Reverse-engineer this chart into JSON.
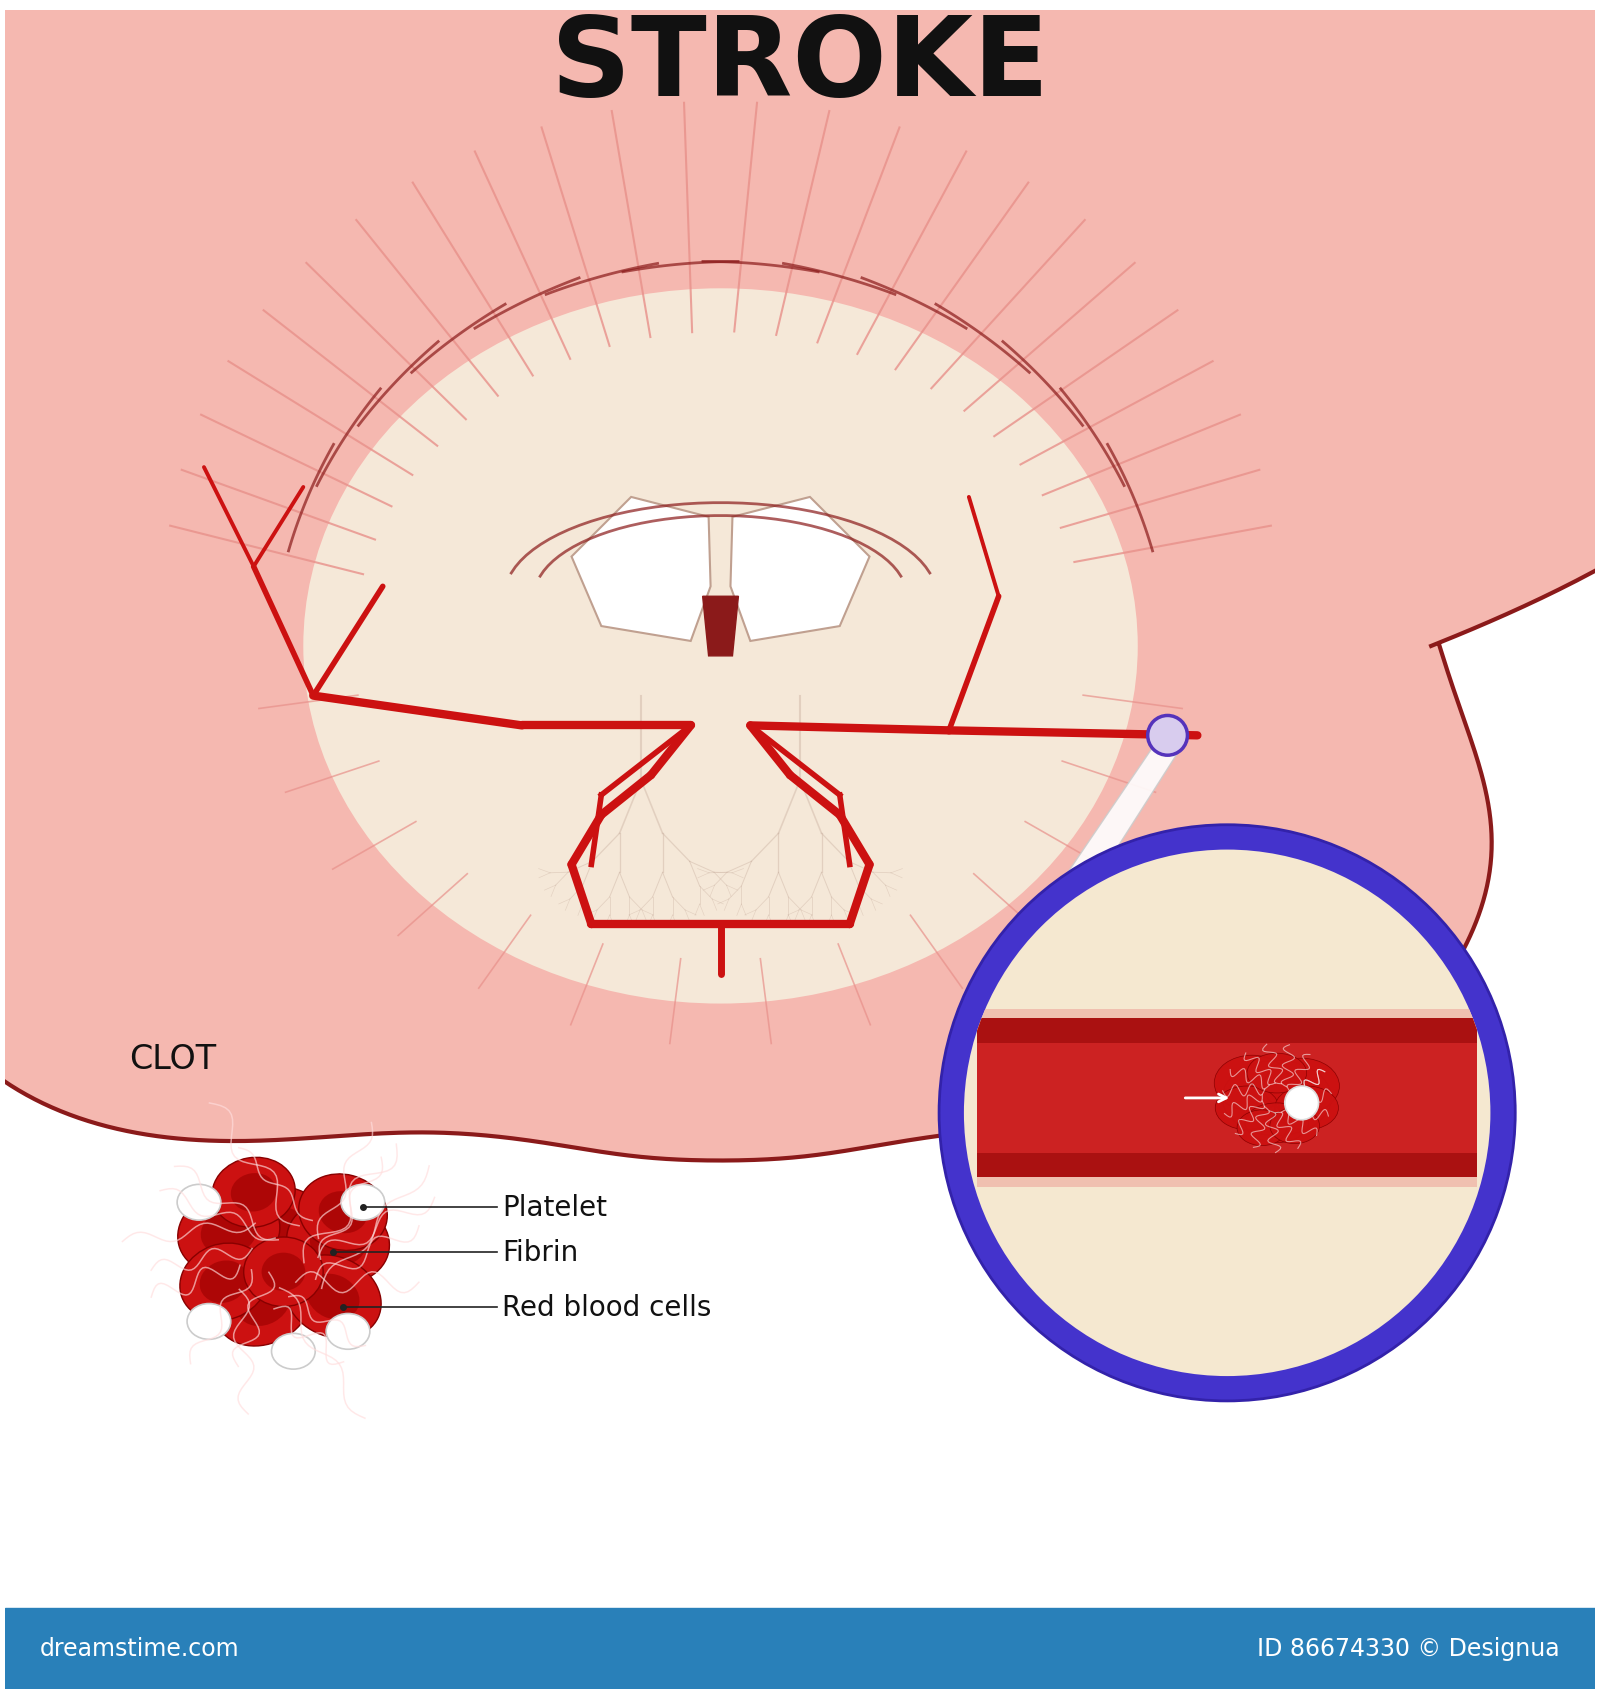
{
  "title": "STROKE",
  "title_fontsize": 80,
  "title_fontweight": "bold",
  "background_color": "#ffffff",
  "brain_inner_fill": "#f5e8d8",
  "brain_cortex_fill": "#f5b8b0",
  "brain_cortex_dark": "#e8908a",
  "brain_outline_color": "#8B1A1A",
  "artery_color": "#cc1111",
  "artery_dark": "#8B0000",
  "clot_label": "CLOT",
  "platelet_label": "Platelet",
  "fibrin_label": "Fibrin",
  "rbc_label": "Red blood cells",
  "label_fontsize": 20,
  "clot_label_fontsize": 24,
  "zoom_circle_color": "#4433cc",
  "zoom_bg_color": "#f5e8d0",
  "footer_bg": "#2980b9",
  "footer_text_left": "dreamstime.com",
  "footer_text_right": "ID 86674330 © Designua",
  "footer_fontsize": 17
}
